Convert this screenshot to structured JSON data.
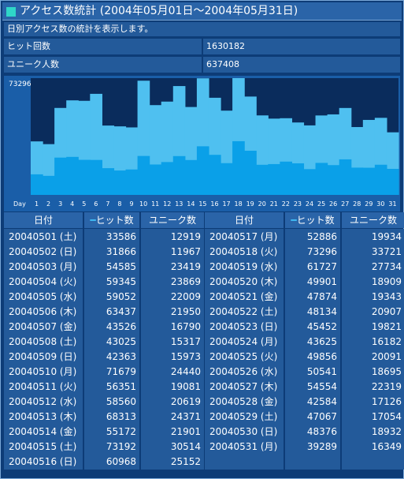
{
  "title": "アクセス数統計 (2004年05月01日～2004年05月31日)",
  "description": "日別アクセス数の統計を表示します。",
  "hits_label": "ヒット回数",
  "hits_total": "1630182",
  "unique_label": "ユニーク人数",
  "unique_total": "637408",
  "table_headers": {
    "date": "日付",
    "hits": "ヒット数",
    "unique": "ユニーク数",
    "hits_marker": "━"
  },
  "colors": {
    "hits_series": "#4fc0f0",
    "unique_series": "#0aa0e8",
    "plot_bg": "#0a2c5c"
  },
  "chart_data": {
    "type": "bar",
    "ymax_label": "73296",
    "x_axis_label": "Day",
    "categories": [
      "1",
      "2",
      "3",
      "4",
      "5",
      "6",
      "7",
      "8",
      "9",
      "10",
      "11",
      "12",
      "13",
      "14",
      "15",
      "16",
      "17",
      "18",
      "19",
      "20",
      "21",
      "22",
      "23",
      "24",
      "25",
      "26",
      "27",
      "28",
      "29",
      "30",
      "31"
    ],
    "ylim": [
      0,
      73296
    ],
    "series": [
      {
        "name": "ヒット数",
        "values": [
          33586,
          31866,
          54585,
          59345,
          59052,
          63437,
          43526,
          43025,
          42363,
          71679,
          56351,
          58560,
          68313,
          55172,
          73192,
          60968,
          52886,
          73296,
          61727,
          49901,
          47874,
          48134,
          45452,
          43625,
          49856,
          50541,
          54554,
          42584,
          47067,
          48376,
          39289
        ]
      },
      {
        "name": "ユニーク数",
        "values": [
          12919,
          11967,
          23419,
          23869,
          22009,
          21950,
          16790,
          15317,
          15973,
          24440,
          19081,
          20619,
          24371,
          21901,
          30514,
          25152,
          19934,
          33721,
          27734,
          18909,
          19343,
          20907,
          19821,
          16182,
          20091,
          18695,
          22319,
          17126,
          17054,
          18932,
          16349
        ]
      }
    ]
  },
  "rows": [
    {
      "date": "20040501 (土)",
      "hits": "33586",
      "unique": "12919"
    },
    {
      "date": "20040502 (日)",
      "hits": "31866",
      "unique": "11967"
    },
    {
      "date": "20040503 (月)",
      "hits": "54585",
      "unique": "23419"
    },
    {
      "date": "20040504 (火)",
      "hits": "59345",
      "unique": "23869"
    },
    {
      "date": "20040505 (水)",
      "hits": "59052",
      "unique": "22009"
    },
    {
      "date": "20040506 (木)",
      "hits": "63437",
      "unique": "21950"
    },
    {
      "date": "20040507 (金)",
      "hits": "43526",
      "unique": "16790"
    },
    {
      "date": "20040508 (土)",
      "hits": "43025",
      "unique": "15317"
    },
    {
      "date": "20040509 (日)",
      "hits": "42363",
      "unique": "15973"
    },
    {
      "date": "20040510 (月)",
      "hits": "71679",
      "unique": "24440"
    },
    {
      "date": "20040511 (火)",
      "hits": "56351",
      "unique": "19081"
    },
    {
      "date": "20040512 (水)",
      "hits": "58560",
      "unique": "20619"
    },
    {
      "date": "20040513 (木)",
      "hits": "68313",
      "unique": "24371"
    },
    {
      "date": "20040514 (金)",
      "hits": "55172",
      "unique": "21901"
    },
    {
      "date": "20040515 (土)",
      "hits": "73192",
      "unique": "30514"
    },
    {
      "date": "20040516 (日)",
      "hits": "60968",
      "unique": "25152"
    },
    {
      "date": "20040517 (月)",
      "hits": "52886",
      "unique": "19934"
    },
    {
      "date": "20040518 (火)",
      "hits": "73296",
      "unique": "33721"
    },
    {
      "date": "20040519 (水)",
      "hits": "61727",
      "unique": "27734"
    },
    {
      "date": "20040520 (木)",
      "hits": "49901",
      "unique": "18909"
    },
    {
      "date": "20040521 (金)",
      "hits": "47874",
      "unique": "19343"
    },
    {
      "date": "20040522 (土)",
      "hits": "48134",
      "unique": "20907"
    },
    {
      "date": "20040523 (日)",
      "hits": "45452",
      "unique": "19821"
    },
    {
      "date": "20040524 (月)",
      "hits": "43625",
      "unique": "16182"
    },
    {
      "date": "20040525 (火)",
      "hits": "49856",
      "unique": "20091"
    },
    {
      "date": "20040526 (水)",
      "hits": "50541",
      "unique": "18695"
    },
    {
      "date": "20040527 (木)",
      "hits": "54554",
      "unique": "22319"
    },
    {
      "date": "20040528 (金)",
      "hits": "42584",
      "unique": "17126"
    },
    {
      "date": "20040529 (土)",
      "hits": "47067",
      "unique": "17054"
    },
    {
      "date": "20040530 (日)",
      "hits": "48376",
      "unique": "18932"
    },
    {
      "date": "20040531 (月)",
      "hits": "39289",
      "unique": "16349"
    }
  ]
}
